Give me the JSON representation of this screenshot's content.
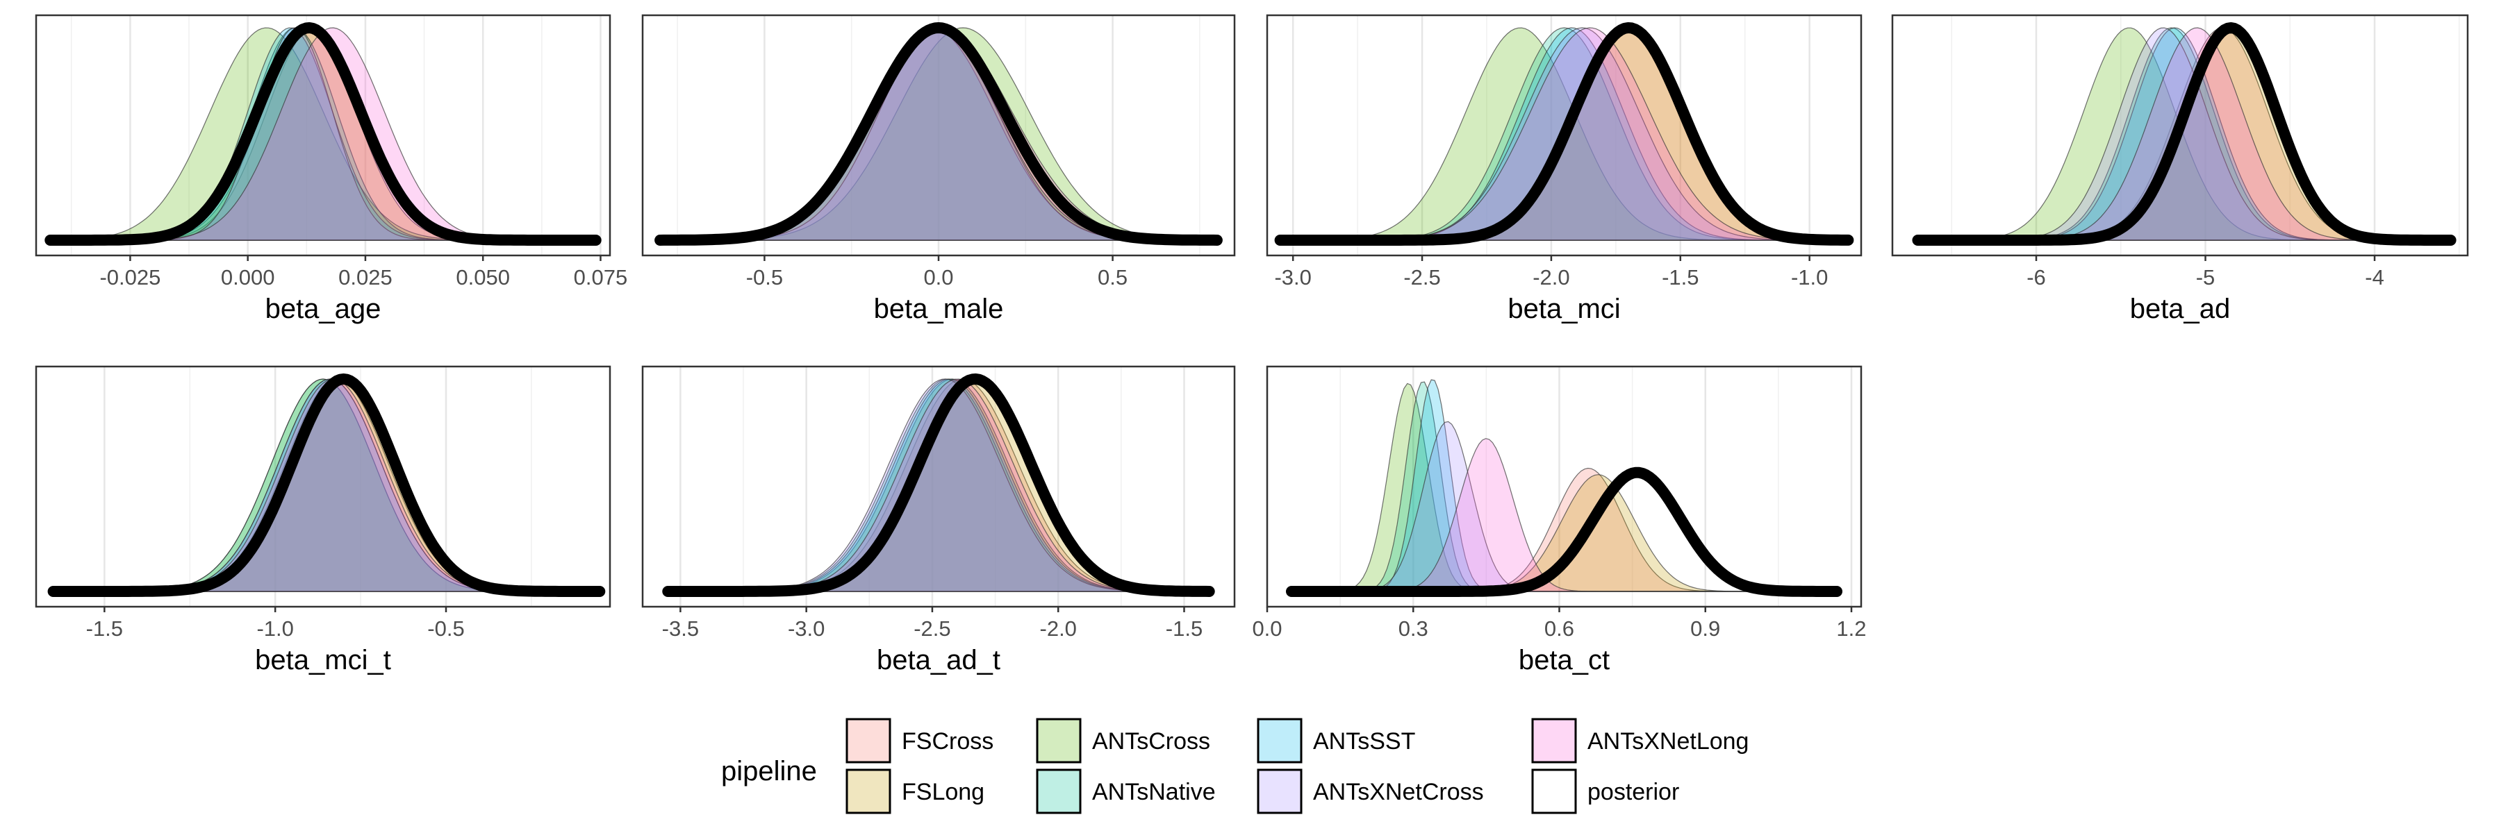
{
  "legend": {
    "title": "pipeline",
    "items": [
      {
        "label": "FSCross",
        "color": "#F8766D"
      },
      {
        "label": "FSLong",
        "color": "#C49A00"
      },
      {
        "label": "ANTsCross",
        "color": "#53B400"
      },
      {
        "label": "ANTsNative",
        "color": "#00C094"
      },
      {
        "label": "ANTsSST",
        "color": "#00B6EB"
      },
      {
        "label": "ANTsXNetCross",
        "color": "#A58AFF"
      },
      {
        "label": "ANTsXNetLong",
        "color": "#FB61D7"
      },
      {
        "label": "posterior",
        "color": "#FFFFFF"
      }
    ]
  },
  "chart_data": [
    {
      "type": "area",
      "title": "",
      "xlabel": "beta_age",
      "ylabel": "",
      "xlim": [
        -0.045,
        0.077
      ],
      "ticks": [
        -0.025,
        0.0,
        0.025,
        0.05,
        0.075
      ],
      "tick_labels": [
        "-0.025",
        "0.000",
        "0.025",
        "0.050",
        "0.075"
      ],
      "x_range": [
        -0.042,
        0.074
      ],
      "series": [
        {
          "name": "FSCross",
          "mean": 0.014,
          "sd": 0.01
        },
        {
          "name": "FSLong",
          "mean": 0.013,
          "sd": 0.01
        },
        {
          "name": "ANTsCross",
          "mean": 0.004,
          "sd": 0.012
        },
        {
          "name": "ANTsNative",
          "mean": 0.01,
          "sd": 0.009
        },
        {
          "name": "ANTsSST",
          "mean": 0.009,
          "sd": 0.009
        },
        {
          "name": "ANTsXNetCross",
          "mean": 0.01,
          "sd": 0.008
        },
        {
          "name": "ANTsXNetLong",
          "mean": 0.018,
          "sd": 0.011
        },
        {
          "name": "posterior",
          "mean": 0.013,
          "sd": 0.011
        }
      ]
    },
    {
      "type": "area",
      "title": "",
      "xlabel": "beta_male",
      "ylabel": "",
      "xlim": [
        -0.85,
        0.85
      ],
      "ticks": [
        -0.5,
        0.0,
        0.5
      ],
      "tick_labels": [
        "-0.5",
        "0.0",
        "0.5"
      ],
      "x_range": [
        -0.8,
        0.8
      ],
      "series": [
        {
          "name": "FSCross",
          "mean": 0.0,
          "sd": 0.18
        },
        {
          "name": "FSLong",
          "mean": -0.01,
          "sd": 0.18
        },
        {
          "name": "ANTsCross",
          "mean": 0.07,
          "sd": 0.19
        },
        {
          "name": "ANTsNative",
          "mean": -0.01,
          "sd": 0.18
        },
        {
          "name": "ANTsSST",
          "mean": -0.02,
          "sd": 0.18
        },
        {
          "name": "ANTsXNetCross",
          "mean": 0.0,
          "sd": 0.17
        },
        {
          "name": "ANTsXNetLong",
          "mean": 0.01,
          "sd": 0.2
        },
        {
          "name": "posterior",
          "mean": 0.0,
          "sd": 0.19
        }
      ]
    },
    {
      "type": "area",
      "title": "",
      "xlabel": "beta_mci",
      "ylabel": "",
      "xlim": [
        -3.1,
        -0.8
      ],
      "ticks": [
        -3.0,
        -2.5,
        -2.0,
        -1.5,
        -1.0
      ],
      "tick_labels": [
        "-3.0",
        "-2.5",
        "-2.0",
        "-1.5",
        "-1.0"
      ],
      "x_range": [
        -3.05,
        -0.85
      ],
      "series": [
        {
          "name": "FSCross",
          "mean": -1.72,
          "sd": 0.21
        },
        {
          "name": "FSLong",
          "mean": -1.7,
          "sd": 0.21
        },
        {
          "name": "ANTsCross",
          "mean": -2.12,
          "sd": 0.21
        },
        {
          "name": "ANTsNative",
          "mean": -1.95,
          "sd": 0.2
        },
        {
          "name": "ANTsSST",
          "mean": -1.92,
          "sd": 0.2
        },
        {
          "name": "ANTsXNetCross",
          "mean": -1.88,
          "sd": 0.22
        },
        {
          "name": "ANTsXNetLong",
          "mean": -1.85,
          "sd": 0.23
        },
        {
          "name": "posterior",
          "mean": -1.7,
          "sd": 0.21
        }
      ]
    },
    {
      "type": "area",
      "title": "",
      "xlabel": "beta_ad",
      "ylabel": "",
      "xlim": [
        -6.85,
        -3.45
      ],
      "ticks": [
        -6,
        -5,
        -4
      ],
      "tick_labels": [
        "-6",
        "-5",
        "-4"
      ],
      "x_range": [
        -6.7,
        -3.55
      ],
      "series": [
        {
          "name": "FSCross",
          "mean": -4.9,
          "sd": 0.27
        },
        {
          "name": "FSLong",
          "mean": -4.85,
          "sd": 0.27
        },
        {
          "name": "ANTsCross",
          "mean": -5.45,
          "sd": 0.27
        },
        {
          "name": "ANTsNative",
          "mean": -5.2,
          "sd": 0.25
        },
        {
          "name": "ANTsSST",
          "mean": -5.18,
          "sd": 0.25
        },
        {
          "name": "ANTsXNetCross",
          "mean": -5.25,
          "sd": 0.26
        },
        {
          "name": "ANTsXNetLong",
          "mean": -5.05,
          "sd": 0.27
        },
        {
          "name": "posterior",
          "mean": -4.85,
          "sd": 0.27
        }
      ]
    },
    {
      "type": "area",
      "title": "",
      "xlabel": "beta_mci_t",
      "ylabel": "",
      "xlim": [
        -1.7,
        -0.02
      ],
      "ticks": [
        -1.5,
        -1.0,
        -0.5
      ],
      "tick_labels": [
        "-1.5",
        "-1.0",
        "-0.5"
      ],
      "x_range": [
        -1.65,
        -0.05
      ],
      "series": [
        {
          "name": "FSCross",
          "mean": -0.82,
          "sd": 0.15
        },
        {
          "name": "FSLong",
          "mean": -0.79,
          "sd": 0.15
        },
        {
          "name": "ANTsCross",
          "mean": -0.86,
          "sd": 0.15
        },
        {
          "name": "ANTsNative",
          "mean": -0.86,
          "sd": 0.15
        },
        {
          "name": "ANTsSST",
          "mean": -0.84,
          "sd": 0.15
        },
        {
          "name": "ANTsXNetCross",
          "mean": -0.84,
          "sd": 0.15
        },
        {
          "name": "ANTsXNetLong",
          "mean": -0.83,
          "sd": 0.15
        },
        {
          "name": "posterior",
          "mean": -0.8,
          "sd": 0.15
        }
      ]
    },
    {
      "type": "area",
      "title": "",
      "xlabel": "beta_ad_t",
      "ylabel": "",
      "xlim": [
        -3.65,
        -1.3
      ],
      "ticks": [
        -3.5,
        -3.0,
        -2.5,
        -2.0,
        -1.5
      ],
      "tick_labels": [
        "-3.5",
        "-3.0",
        "-2.5",
        "-2.0",
        "-1.5"
      ],
      "x_range": [
        -3.55,
        -1.4
      ],
      "series": [
        {
          "name": "FSCross",
          "mean": -2.38,
          "sd": 0.22
        },
        {
          "name": "FSLong",
          "mean": -2.34,
          "sd": 0.22
        },
        {
          "name": "ANTsCross",
          "mean": -2.42,
          "sd": 0.22
        },
        {
          "name": "ANTsNative",
          "mean": -2.44,
          "sd": 0.22
        },
        {
          "name": "ANTsSST",
          "mean": -2.43,
          "sd": 0.22
        },
        {
          "name": "ANTsXNetCross",
          "mean": -2.45,
          "sd": 0.22
        },
        {
          "name": "ANTsXNetLong",
          "mean": -2.4,
          "sd": 0.22
        },
        {
          "name": "posterior",
          "mean": -2.33,
          "sd": 0.22
        }
      ]
    },
    {
      "type": "area",
      "title": "",
      "xlabel": "beta_ct",
      "ylabel": "",
      "xlim": [
        0.0,
        1.22
      ],
      "ticks": [
        0.0,
        0.3,
        0.6,
        0.9,
        1.2
      ],
      "tick_labels": [
        "0.0",
        "0.3",
        "0.6",
        "0.9",
        "1.2"
      ],
      "x_range": [
        0.05,
        1.17
      ],
      "series": [
        {
          "name": "FSCross",
          "mean": 0.66,
          "sd": 0.07,
          "h": 0.58
        },
        {
          "name": "FSLong",
          "mean": 0.68,
          "sd": 0.075,
          "h": 0.55
        },
        {
          "name": "ANTsCross",
          "mean": 0.29,
          "sd": 0.04,
          "h": 0.98
        },
        {
          "name": "ANTsNative",
          "mean": 0.32,
          "sd": 0.035,
          "h": 0.99
        },
        {
          "name": "ANTsSST",
          "mean": 0.34,
          "sd": 0.035,
          "h": 1.0
        },
        {
          "name": "ANTsXNetCross",
          "mean": 0.37,
          "sd": 0.05,
          "h": 0.8
        },
        {
          "name": "ANTsXNetLong",
          "mean": 0.45,
          "sd": 0.055,
          "h": 0.72
        },
        {
          "name": "posterior",
          "mean": 0.76,
          "sd": 0.09,
          "h": 0.56
        }
      ]
    }
  ]
}
